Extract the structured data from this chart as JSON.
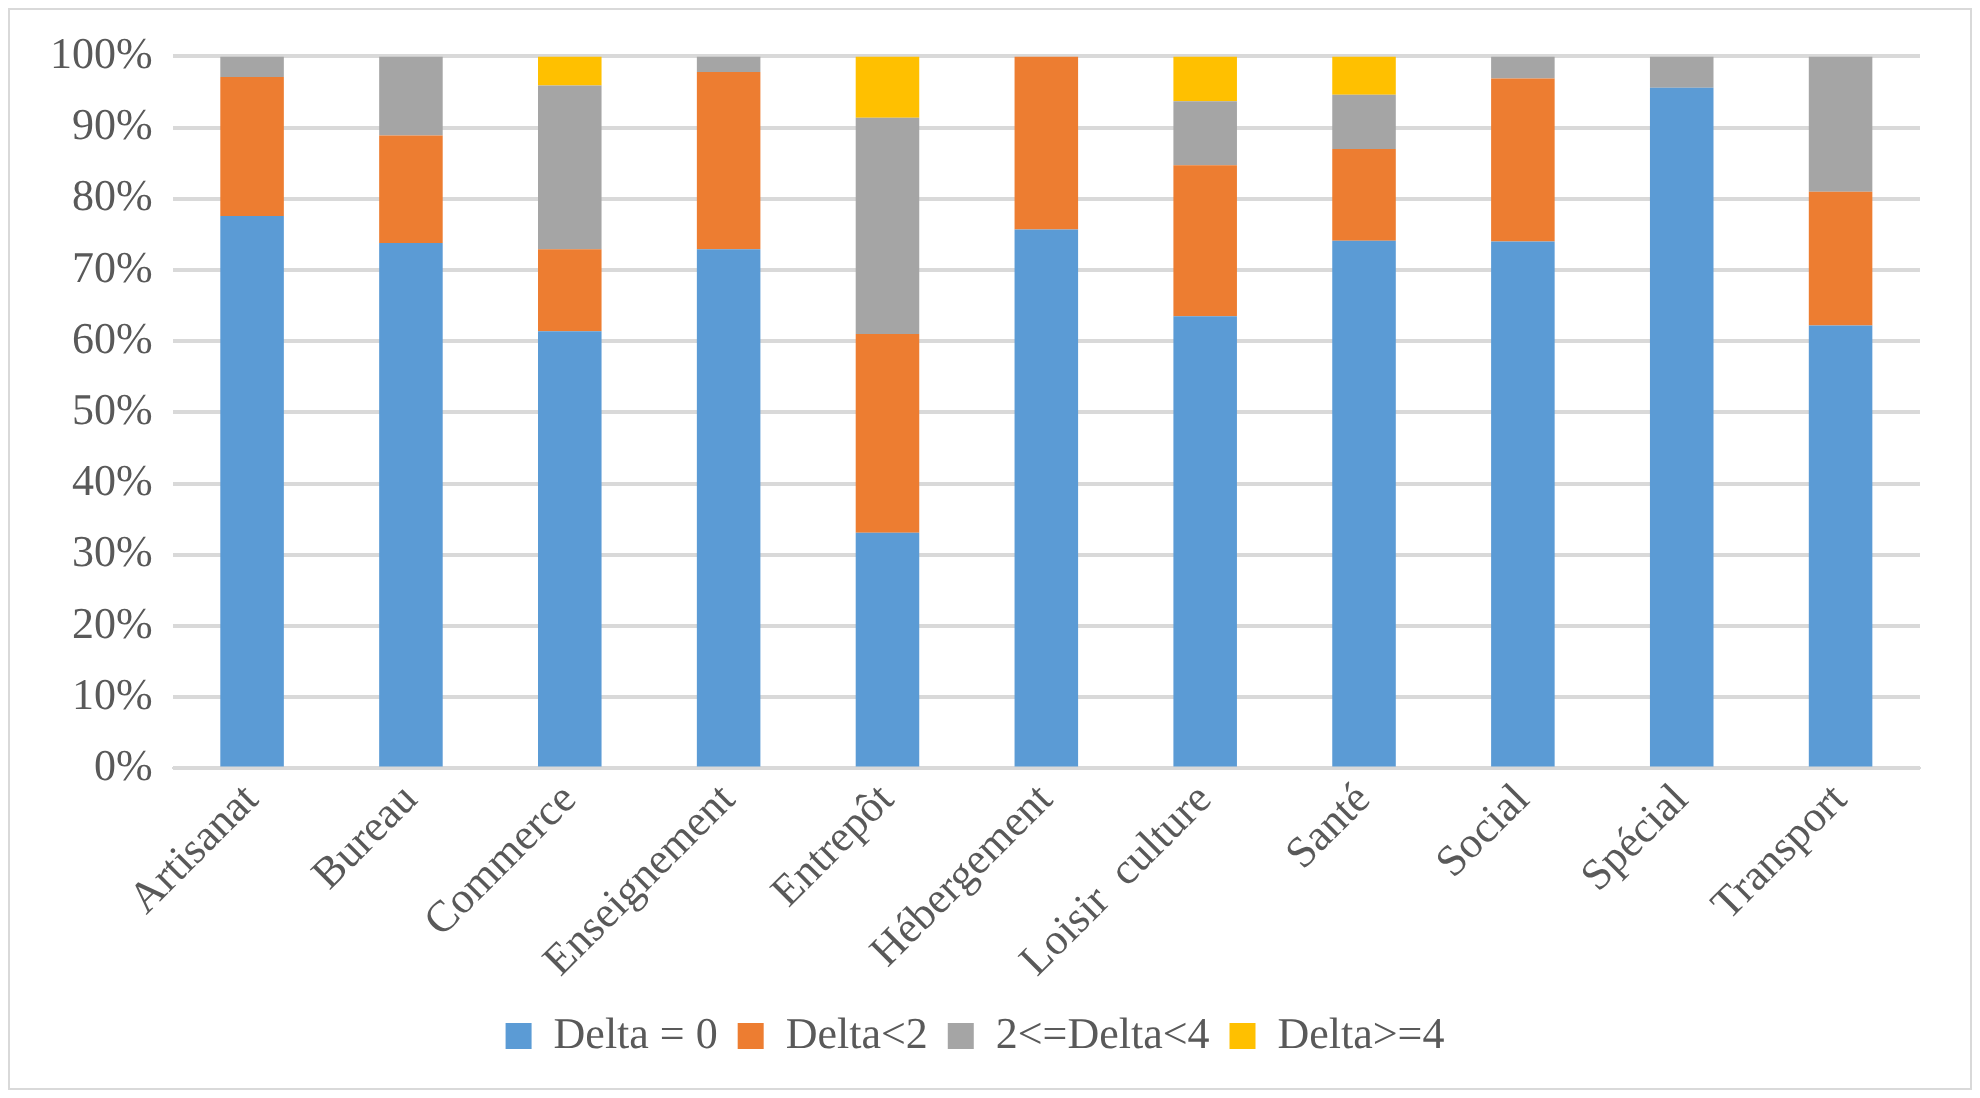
{
  "chart_data": {
    "type": "bar",
    "stacked": true,
    "categories": [
      "Artisanat",
      "Bureau",
      "Commerce",
      "Enseignement",
      "Entrepôt",
      "Hébergement",
      "Loisir  culture",
      "Santé",
      "Social",
      "Spécial",
      "Transport"
    ],
    "series": [
      {
        "name": "Delta = 0",
        "color": "#5b9bd5",
        "values": [
          77.6,
          73.8,
          61.4,
          72.9,
          33.1,
          75.7,
          63.5,
          74.1,
          74.0,
          95.6,
          62.2
        ]
      },
      {
        "name": "Delta<2",
        "color": "#ed7d31",
        "values": [
          19.5,
          15.1,
          11.5,
          24.9,
          27.9,
          24.3,
          21.2,
          12.9,
          22.9,
          0,
          18.8
        ]
      },
      {
        "name": "2<=Delta<4",
        "color": "#a5a5a5",
        "values": [
          2.9,
          11.1,
          23.0,
          2.2,
          30.4,
          0,
          9.0,
          7.6,
          3.1,
          4.4,
          19.0
        ]
      },
      {
        "name": "Delta>=4",
        "color": "#ffc000",
        "values": [
          0,
          0,
          4.1,
          0,
          8.6,
          0,
          6.3,
          5.4,
          0,
          0,
          0
        ]
      }
    ],
    "ylim": [
      0,
      100
    ],
    "yticks": [
      {
        "value": 0,
        "label": "0%"
      },
      {
        "value": 10,
        "label": "10%"
      },
      {
        "value": 20,
        "label": "20%"
      },
      {
        "value": 30,
        "label": "30%"
      },
      {
        "value": 40,
        "label": "40%"
      },
      {
        "value": 50,
        "label": "50%"
      },
      {
        "value": 60,
        "label": "60%"
      },
      {
        "value": 70,
        "label": "70%"
      },
      {
        "value": 80,
        "label": "80%"
      },
      {
        "value": 90,
        "label": "90%"
      },
      {
        "value": 100,
        "label": "100%"
      }
    ],
    "grid": "y",
    "legend": "bottom"
  }
}
